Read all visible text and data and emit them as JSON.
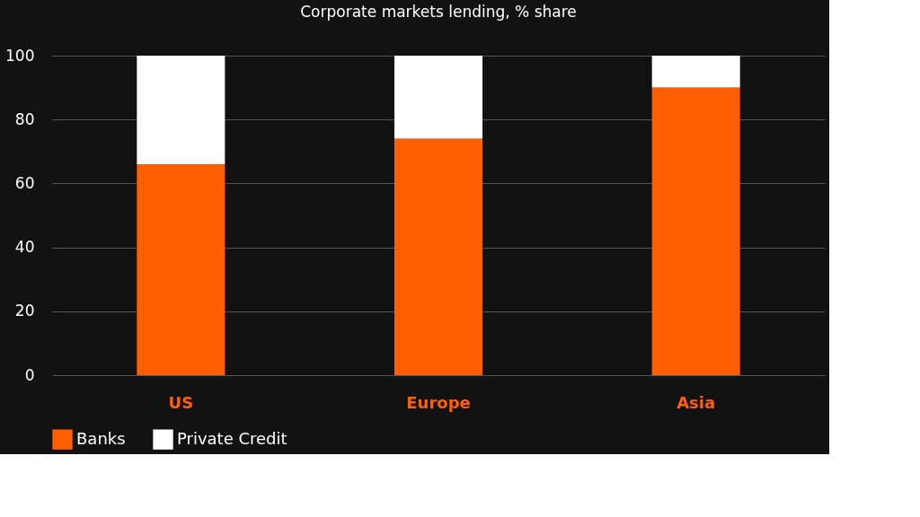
{
  "chart_data": {
    "type": "bar",
    "title": "Corporate markets lending, % share",
    "categories": [
      "US",
      "Europe",
      "Asia"
    ],
    "series": [
      {
        "name": "Banks",
        "color": "#ff5f00",
        "values": [
          66,
          74,
          90
        ]
      },
      {
        "name": "Private Credit",
        "color": "#ffffff",
        "values": [
          34,
          26,
          10
        ]
      }
    ],
    "stacked": true,
    "ylim": [
      0,
      100
    ],
    "yticks": [
      0,
      20,
      40,
      60,
      80,
      100
    ],
    "grid": "y",
    "legend": "bottom"
  }
}
